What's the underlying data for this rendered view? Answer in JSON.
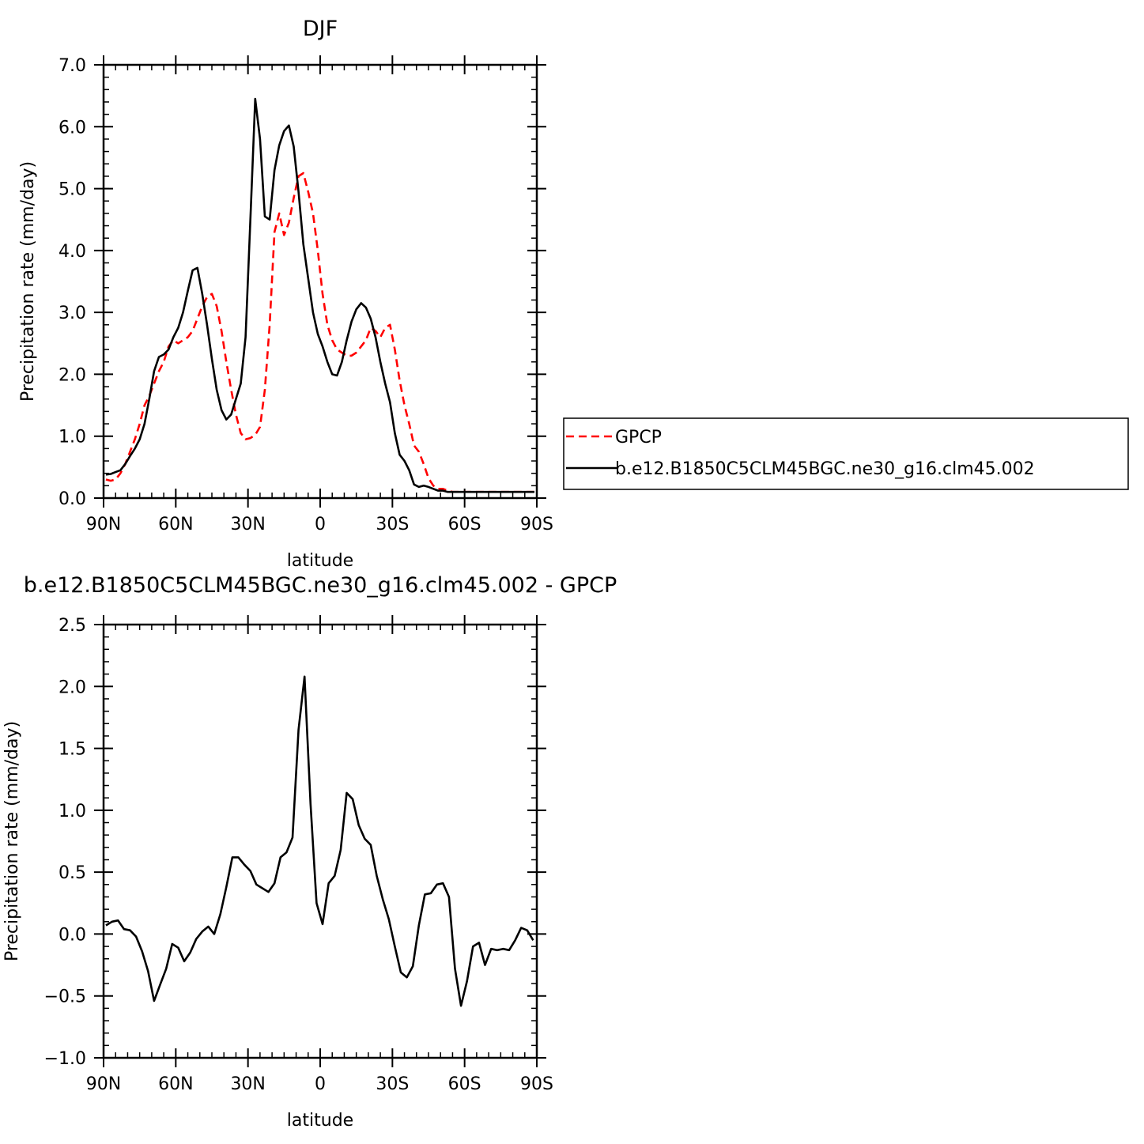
{
  "chart_data": [
    {
      "type": "line",
      "title": "DJF",
      "xlabel": "latitude",
      "ylabel": "Precipitation rate (mm/day)",
      "xlim": [
        90,
        -90
      ],
      "ylim": [
        0,
        7
      ],
      "x_ticks": [
        90,
        60,
        30,
        0,
        -30,
        -60,
        -90
      ],
      "x_tick_labels": [
        "90N",
        "60N",
        "30N",
        "0",
        "30S",
        "60S",
        "90S"
      ],
      "y_ticks": [
        0,
        1,
        2,
        3,
        4,
        5,
        6,
        7
      ],
      "y_tick_labels": [
        "0.0",
        "1.0",
        "2.0",
        "3.0",
        "4.0",
        "5.0",
        "6.0",
        "7.0"
      ],
      "legend_position": "right",
      "series": [
        {
          "name": "GPCP",
          "color": "#ff0000",
          "dash": "dashed",
          "x": [
            89,
            87,
            85,
            83,
            81,
            79,
            77,
            75,
            73,
            71,
            69,
            67,
            65,
            63,
            61,
            59,
            57,
            55,
            53,
            51,
            49,
            47,
            45,
            43,
            41,
            39,
            37,
            35,
            33,
            31,
            29,
            27,
            25,
            23,
            21,
            19,
            17,
            15,
            13,
            11,
            9,
            7,
            5,
            3,
            1,
            -1,
            -3,
            -5,
            -7,
            -9,
            -11,
            -13,
            -15,
            -17,
            -19,
            -21,
            -23,
            -25,
            -27,
            -29,
            -31,
            -33,
            -35,
            -37,
            -39,
            -41,
            -43,
            -45,
            -47,
            -49,
            -51,
            -53,
            -55,
            -57,
            -59,
            -61,
            -63,
            -65,
            -67,
            -69,
            -71,
            -73,
            -75,
            -77,
            -79,
            -81,
            -83,
            -85,
            -87,
            -89
          ],
          "values": [
            0.3,
            0.28,
            0.3,
            0.4,
            0.55,
            0.75,
            0.95,
            1.2,
            1.5,
            1.65,
            1.85,
            2.05,
            2.2,
            2.45,
            2.55,
            2.5,
            2.55,
            2.6,
            2.7,
            2.9,
            3.1,
            3.25,
            3.3,
            3.1,
            2.7,
            2.2,
            1.75,
            1.35,
            1.05,
            0.95,
            0.97,
            1.02,
            1.15,
            1.75,
            2.8,
            4.3,
            4.6,
            4.25,
            4.45,
            4.85,
            5.2,
            5.25,
            4.95,
            4.6,
            4.0,
            3.3,
            2.8,
            2.55,
            2.4,
            2.35,
            2.3,
            2.3,
            2.35,
            2.45,
            2.55,
            2.75,
            2.7,
            2.6,
            2.75,
            2.8,
            2.4,
            1.9,
            1.5,
            1.2,
            0.85,
            0.75,
            0.55,
            0.32,
            0.2,
            0.15,
            0.15,
            0.12,
            0.1,
            0.1,
            0.1,
            0.1,
            0.1,
            0.1,
            0.1,
            0.1,
            0.1,
            0.1,
            0.1,
            0.1,
            0.1,
            0.1,
            0.1,
            0.1,
            0.1,
            0.1
          ]
        },
        {
          "name": "b.e12.B1850C5CLM45BGC.ne30_g16.clm45.002",
          "color": "#000000",
          "dash": "solid",
          "x": [
            89,
            87,
            85,
            83,
            81,
            79,
            77,
            75,
            73,
            71,
            69,
            67,
            65,
            63,
            61,
            59,
            57,
            55,
            53,
            51,
            49,
            47,
            45,
            43,
            41,
            39,
            37,
            35,
            33,
            31,
            29,
            27,
            25,
            23,
            21,
            19,
            17,
            15,
            13,
            11,
            9,
            7,
            5,
            3,
            1,
            -1,
            -3,
            -5,
            -7,
            -9,
            -11,
            -13,
            -15,
            -17,
            -19,
            -21,
            -23,
            -25,
            -27,
            -29,
            -31,
            -33,
            -35,
            -37,
            -39,
            -41,
            -43,
            -45,
            -47,
            -49,
            -51,
            -53,
            -55,
            -57,
            -59,
            -61,
            -63,
            -65,
            -67,
            -69,
            -71,
            -73,
            -75,
            -77,
            -79,
            -81,
            -83,
            -85,
            -87,
            -89
          ],
          "values": [
            0.38,
            0.39,
            0.42,
            0.45,
            0.55,
            0.68,
            0.8,
            0.95,
            1.2,
            1.6,
            2.05,
            2.28,
            2.32,
            2.4,
            2.6,
            2.75,
            3.0,
            3.35,
            3.68,
            3.72,
            3.3,
            2.8,
            2.25,
            1.75,
            1.42,
            1.27,
            1.35,
            1.6,
            1.85,
            2.6,
            4.5,
            6.45,
            5.8,
            4.55,
            4.5,
            5.3,
            5.7,
            5.93,
            6.02,
            5.68,
            4.95,
            4.1,
            3.55,
            3.0,
            2.65,
            2.45,
            2.2,
            2.0,
            1.98,
            2.2,
            2.55,
            2.85,
            3.05,
            3.15,
            3.08,
            2.9,
            2.6,
            2.2,
            1.85,
            1.55,
            1.05,
            0.7,
            0.6,
            0.45,
            0.22,
            0.18,
            0.2,
            0.18,
            0.15,
            0.12,
            0.12,
            0.1,
            0.1,
            0.1,
            0.1,
            0.1,
            0.1,
            0.1,
            0.1,
            0.1,
            0.1,
            0.1,
            0.1,
            0.1,
            0.1,
            0.1,
            0.1,
            0.1,
            0.1,
            0.1
          ]
        }
      ]
    },
    {
      "type": "line",
      "title": "b.e12.B1850C5CLM45BGC.ne30_g16.clm45.002 - GPCP",
      "xlabel": "latitude",
      "ylabel": "Precipitation rate (mm/day)",
      "xlim": [
        90,
        -90
      ],
      "ylim": [
        -1,
        2.5
      ],
      "x_ticks": [
        90,
        60,
        30,
        0,
        -30,
        -60,
        -90
      ],
      "x_tick_labels": [
        "90N",
        "60N",
        "30N",
        "0",
        "30S",
        "60S",
        "90S"
      ],
      "y_ticks": [
        -1,
        -0.5,
        0,
        0.5,
        1,
        1.5,
        2,
        2.5
      ],
      "y_tick_labels": [
        "−1.0",
        "−0.5",
        "0.0",
        "0.5",
        "1.0",
        "1.5",
        "2.0",
        "2.5"
      ],
      "series": [
        {
          "color": "#000000",
          "dash": "solid",
          "x": [
            89,
            86.5,
            84,
            81.5,
            79,
            76.5,
            74,
            71.5,
            69,
            66.5,
            64,
            61.5,
            59,
            56.5,
            54,
            51.5,
            49,
            46.5,
            44,
            41.5,
            39,
            36.5,
            34,
            31.5,
            29,
            26.5,
            24,
            21.5,
            19,
            16.5,
            14,
            11.5,
            9,
            6.5,
            4,
            1.5,
            -1,
            -3.5,
            -6,
            -8.5,
            -11,
            -13.5,
            -16,
            -18.5,
            -21,
            -23.5,
            -26,
            -28.5,
            -31,
            -33.5,
            -36,
            -38.5,
            -41,
            -43.5,
            -46,
            -48.5,
            -51,
            -53.5,
            -56,
            -58.5,
            -61,
            -63.5,
            -66,
            -68.5,
            -71,
            -73.5,
            -76,
            -78.5,
            -81,
            -83.5,
            -86,
            -88.5
          ],
          "values": [
            0.07,
            0.1,
            0.11,
            0.04,
            0.03,
            -0.02,
            -0.14,
            -0.3,
            -0.54,
            -0.41,
            -0.28,
            -0.08,
            -0.11,
            -0.22,
            -0.15,
            -0.04,
            0.02,
            0.06,
            0.0,
            0.16,
            0.38,
            0.62,
            0.62,
            0.56,
            0.51,
            0.4,
            0.37,
            0.34,
            0.41,
            0.62,
            0.66,
            0.78,
            1.65,
            2.08,
            1.05,
            0.25,
            0.08,
            0.41,
            0.47,
            0.68,
            1.14,
            1.09,
            0.88,
            0.77,
            0.72,
            0.47,
            0.28,
            0.12,
            -0.1,
            -0.31,
            -0.35,
            -0.26,
            0.07,
            0.32,
            0.33,
            0.4,
            0.41,
            0.3,
            -0.28,
            -0.58,
            -0.38,
            -0.1,
            -0.07,
            -0.25,
            -0.12,
            -0.13,
            -0.12,
            -0.13,
            -0.05,
            0.05,
            0.03,
            -0.05
          ]
        }
      ]
    }
  ]
}
